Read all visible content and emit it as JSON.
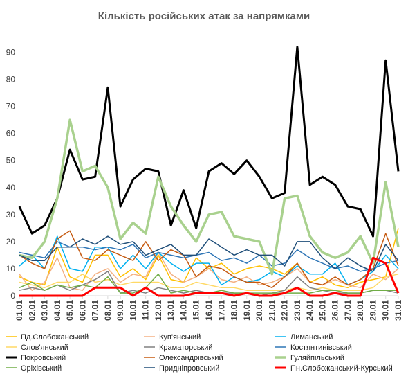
{
  "chart_data": {
    "type": "line",
    "title": "Кількість російських атак за напрямками",
    "xlabel": "",
    "ylabel": "",
    "ylim": [
      0,
      95
    ],
    "yticks": [
      0,
      10,
      20,
      30,
      40,
      50,
      60,
      70,
      80,
      90
    ],
    "grid": false,
    "legend_position": "bottom",
    "categories": [
      "01.01",
      "02.01",
      "03.01",
      "04.01",
      "05.01",
      "06.01",
      "07.01",
      "08.01",
      "09.01",
      "10.01",
      "11.01",
      "12.01",
      "13.01",
      "14.01",
      "15.01",
      "16.01",
      "17.01",
      "18.01",
      "19.01",
      "20.01",
      "21.01",
      "22.01",
      "23.01",
      "24.01",
      "25.01",
      "26.01",
      "27.01",
      "28.01",
      "29.01",
      "30.01",
      "31.01"
    ],
    "series": [
      {
        "name": "Пд.Слобожанський",
        "color": "#ffc000",
        "values": [
          7,
          5,
          4,
          18,
          7,
          5,
          15,
          15,
          7,
          10,
          6,
          15,
          6,
          5,
          14,
          10,
          12,
          8,
          10,
          11,
          10,
          8,
          12,
          5,
          7,
          4,
          3,
          5,
          6,
          7,
          25
        ]
      },
      {
        "name": "Куп'янський",
        "color": "#f4b183",
        "values": [
          8,
          2,
          5,
          14,
          3,
          2,
          8,
          10,
          5,
          8,
          7,
          16,
          8,
          5,
          7,
          10,
          6,
          5,
          7,
          4,
          5,
          7,
          10,
          5,
          4,
          6,
          4,
          3,
          8,
          6,
          10
        ]
      },
      {
        "name": "Лиманський",
        "color": "#00b0f0",
        "values": [
          11,
          15,
          10,
          22,
          10,
          9,
          18,
          18,
          10,
          15,
          10,
          16,
          12,
          9,
          12,
          12,
          4,
          7,
          5,
          6,
          9,
          7,
          11,
          8,
          8,
          12,
          4,
          6,
          9,
          15,
          10
        ]
      },
      {
        "name": "Слов'янський",
        "color": "#ffd966",
        "values": [
          5,
          4,
          3,
          5,
          5,
          8,
          5,
          6,
          4,
          5,
          5,
          5,
          3,
          3,
          5,
          4,
          3,
          3,
          2,
          2,
          2,
          2,
          3,
          2,
          3,
          2,
          2,
          2,
          3,
          7,
          8
        ]
      },
      {
        "name": "Краматорський",
        "color": "#808080",
        "values": [
          2,
          3,
          2,
          4,
          2,
          4,
          6,
          9,
          1,
          2,
          1,
          3,
          2,
          1,
          2,
          1,
          1,
          1,
          1,
          0,
          1,
          2,
          7,
          3,
          2,
          1,
          1,
          1,
          2,
          2,
          1
        ]
      },
      {
        "name": "Костянтинівський",
        "color": "#2e75b6",
        "values": [
          16,
          15,
          14,
          20,
          18,
          18,
          17,
          18,
          17,
          19,
          14,
          16,
          15,
          14,
          15,
          16,
          13,
          14,
          12,
          15,
          11,
          12,
          17,
          14,
          12,
          10,
          11,
          9,
          10,
          12,
          13
        ]
      },
      {
        "name": "Покровський",
        "color": "#000000",
        "values": [
          33,
          23,
          26,
          36,
          54,
          43,
          44,
          77,
          33,
          43,
          47,
          46,
          26,
          39,
          25,
          46,
          49,
          45,
          50,
          44,
          36,
          38,
          92,
          41,
          44,
          41,
          33,
          32,
          22,
          87,
          46
        ]
      },
      {
        "name": "Олександрівський",
        "color": "#c55a11",
        "values": [
          15,
          12,
          10,
          21,
          24,
          14,
          13,
          17,
          15,
          13,
          20,
          13,
          17,
          15,
          7,
          11,
          10,
          7,
          5,
          5,
          3,
          7,
          12,
          5,
          4,
          7,
          4,
          6,
          10,
          23,
          11
        ]
      },
      {
        "name": "Гуляйпільський",
        "color": "#a9d18e",
        "values": [
          15,
          14,
          20,
          36,
          65,
          46,
          48,
          40,
          21,
          27,
          23,
          44,
          33,
          26,
          20,
          30,
          31,
          22,
          21,
          20,
          8,
          36,
          37,
          22,
          16,
          14,
          16,
          22,
          12,
          42,
          18
        ]
      },
      {
        "name": "Оріхівський",
        "color": "#70ad47",
        "values": [
          3,
          5,
          2,
          4,
          3,
          4,
          3,
          7,
          1,
          1,
          3,
          8,
          1,
          2,
          1,
          1,
          2,
          1,
          1,
          1,
          1,
          1,
          1,
          1,
          2,
          2,
          1,
          1,
          2,
          2,
          2
        ]
      },
      {
        "name": "Придніпровський",
        "color": "#1f4e79",
        "values": [
          15,
          13,
          13,
          18,
          18,
          21,
          19,
          22,
          19,
          20,
          15,
          17,
          19,
          15,
          15,
          21,
          18,
          15,
          17,
          15,
          15,
          11,
          20,
          20,
          14,
          10,
          14,
          11,
          9,
          19,
          13
        ]
      },
      {
        "name": "Пн.Слобожанський-Курський",
        "color": "#ff0000",
        "values": [
          0,
          0,
          0,
          0,
          0,
          0,
          3,
          3,
          3,
          0,
          3,
          0,
          0,
          0,
          1,
          1,
          1,
          0,
          1,
          0,
          0,
          1,
          3,
          0,
          0,
          1,
          0,
          0,
          14,
          12,
          1
        ]
      }
    ]
  }
}
